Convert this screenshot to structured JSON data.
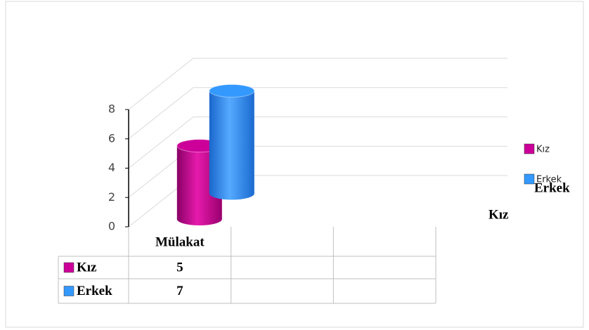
{
  "chart_data": {
    "type": "bar3d",
    "categories": [
      "Mülakat",
      null,
      null
    ],
    "series": [
      {
        "name": "Kız",
        "color": "#cc0099",
        "values": [
          5,
          null,
          null
        ]
      },
      {
        "name": "Erkek",
        "color": "#3399ff",
        "values": [
          7,
          null,
          null
        ]
      }
    ],
    "ylim": [
      0,
      8
    ],
    "yticks": [
      0,
      2,
      4,
      6,
      8
    ],
    "grid": true,
    "legend": "right",
    "data_table": true
  }
}
